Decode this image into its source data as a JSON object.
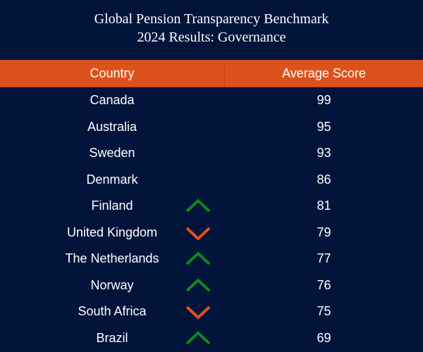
{
  "title_line1": "Global Pension Transparency Benchmark",
  "title_line2": "2024 Results: Governance",
  "colors": {
    "background": "#03143a",
    "header": "#dd521b",
    "up": "#0a8a1a",
    "down": "#e0501a"
  },
  "chart_data": {
    "type": "table",
    "columns": [
      "Country",
      "Average Score"
    ],
    "rows": [
      {
        "country": "Canada",
        "score": "99",
        "trend": ""
      },
      {
        "country": "Australia",
        "score": "95",
        "trend": ""
      },
      {
        "country": "Sweden",
        "score": "93",
        "trend": ""
      },
      {
        "country": "Denmark",
        "score": "86",
        "trend": ""
      },
      {
        "country": "Finland",
        "score": "81",
        "trend": "up"
      },
      {
        "country": "United Kingdom",
        "score": "79",
        "trend": "down"
      },
      {
        "country": "The Netherlands",
        "score": "77",
        "trend": "up"
      },
      {
        "country": "Norway",
        "score": "76",
        "trend": "up"
      },
      {
        "country": "South Africa",
        "score": "75",
        "trend": "down"
      },
      {
        "country": "Brazil",
        "score": "69",
        "trend": "up"
      }
    ]
  }
}
